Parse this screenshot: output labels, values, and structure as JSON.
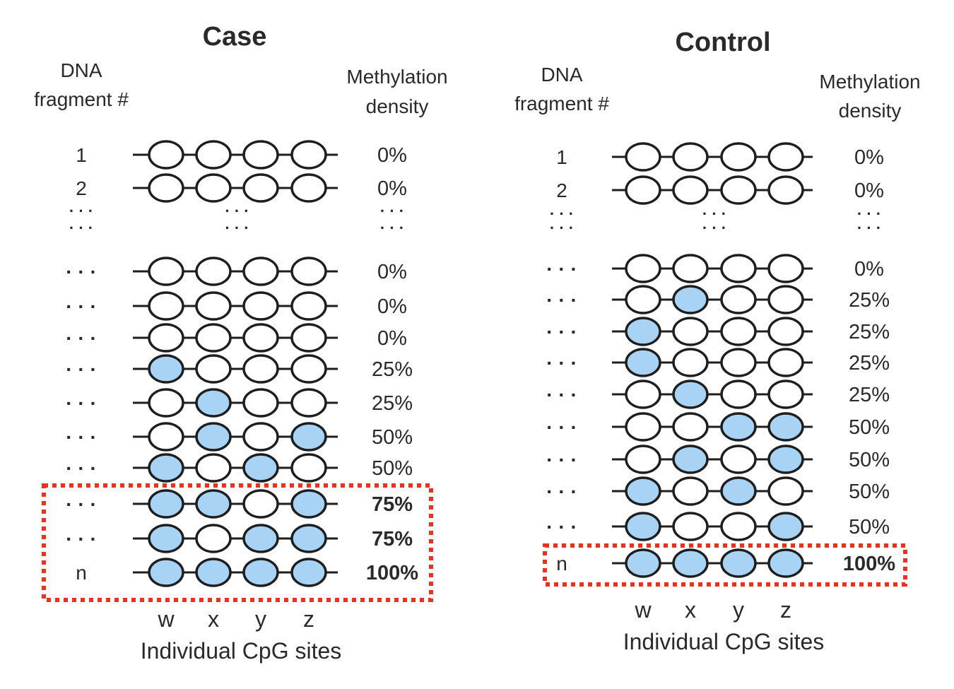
{
  "colors": {
    "methylated": "#a9d3f5",
    "unmethylated": "#ffffff",
    "stroke": "#1e1e1e",
    "highlight": "#e8321e"
  },
  "panels": [
    {
      "id": "case",
      "title": "Case",
      "fragment_header": [
        "DNA",
        "fragment #"
      ],
      "density_header": [
        "Methylation",
        "density"
      ],
      "ellipsis_row": {
        "label": [
          "· · ·",
          "· · ·"
        ],
        "sites": [
          "· · ·",
          "· · ·"
        ],
        "density": [
          "· · ·",
          "· · ·"
        ]
      },
      "rows": [
        {
          "label": "1",
          "sites": [
            0,
            0,
            0,
            0
          ],
          "density": "0%"
        },
        {
          "label": "2",
          "sites": [
            0,
            0,
            0,
            0
          ],
          "density": "0%"
        },
        {
          "ellipsis": true
        },
        {
          "label": "· · ·",
          "sites": [
            0,
            0,
            0,
            0
          ],
          "density": "0%"
        },
        {
          "label": "· · ·",
          "sites": [
            0,
            0,
            0,
            0
          ],
          "density": "0%"
        },
        {
          "label": "· · ·",
          "sites": [
            0,
            0,
            0,
            0
          ],
          "density": "0%"
        },
        {
          "label": "· · ·",
          "sites": [
            1,
            0,
            0,
            0
          ],
          "density": "25%"
        },
        {
          "label": "· · ·",
          "sites": [
            0,
            1,
            0,
            0
          ],
          "density": "25%"
        },
        {
          "label": "· · ·",
          "sites": [
            0,
            1,
            0,
            1
          ],
          "density": "50%"
        },
        {
          "label": "· · ·",
          "sites": [
            1,
            0,
            1,
            0
          ],
          "density": "50%"
        },
        {
          "label": "· · ·",
          "sites": [
            1,
            1,
            0,
            1
          ],
          "density": "75%",
          "bold": true
        },
        {
          "label": "· · ·",
          "sites": [
            1,
            0,
            1,
            1
          ],
          "density": "75%",
          "bold": true
        },
        {
          "label": "n",
          "sites": [
            1,
            1,
            1,
            1
          ],
          "density": "100%",
          "bold": true
        }
      ],
      "site_labels": [
        "w",
        "x",
        "y",
        "z"
      ],
      "axis_label": "Individual CpG sites"
    },
    {
      "id": "control",
      "title": "Control",
      "fragment_header": [
        "DNA",
        "fragment #"
      ],
      "density_header": [
        "Methylation",
        "density"
      ],
      "ellipsis_row": {
        "label": [
          "· · ·",
          "· · ·"
        ],
        "sites": [
          "· · ·",
          "· · ·"
        ],
        "density": [
          "· · ·",
          "· · ·"
        ]
      },
      "rows": [
        {
          "label": "1",
          "sites": [
            0,
            0,
            0,
            0
          ],
          "density": "0%"
        },
        {
          "label": "2",
          "sites": [
            0,
            0,
            0,
            0
          ],
          "density": "0%"
        },
        {
          "ellipsis": true
        },
        {
          "label": "· · ·",
          "sites": [
            0,
            0,
            0,
            0
          ],
          "density": "0%"
        },
        {
          "label": "· · ·",
          "sites": [
            0,
            1,
            0,
            0
          ],
          "density": "25%"
        },
        {
          "label": "· · ·",
          "sites": [
            1,
            0,
            0,
            0
          ],
          "density": "25%"
        },
        {
          "label": "· · ·",
          "sites": [
            1,
            0,
            0,
            0
          ],
          "density": "25%"
        },
        {
          "label": "· · ·",
          "sites": [
            0,
            1,
            0,
            0
          ],
          "density": "25%"
        },
        {
          "label": "· · ·",
          "sites": [
            0,
            0,
            1,
            1
          ],
          "density": "50%"
        },
        {
          "label": "· · ·",
          "sites": [
            0,
            1,
            0,
            1
          ],
          "density": "50%"
        },
        {
          "label": "· · ·",
          "sites": [
            1,
            0,
            1,
            0
          ],
          "density": "50%"
        },
        {
          "label": "· · ·",
          "sites": [
            1,
            0,
            0,
            1
          ],
          "density": "50%"
        },
        {
          "label": "n",
          "sites": [
            1,
            1,
            1,
            1
          ],
          "density": "100%",
          "bold": true
        }
      ],
      "site_labels": [
        "w",
        "x",
        "y",
        "z"
      ],
      "axis_label": "Individual CpG sites"
    }
  ]
}
